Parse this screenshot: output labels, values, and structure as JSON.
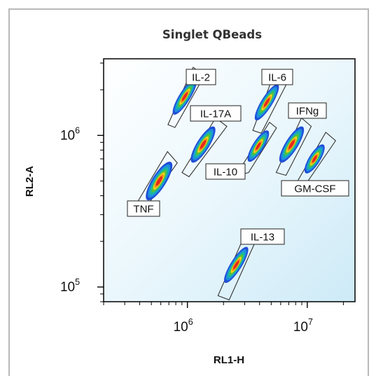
{
  "chart_data": {
    "type": "scatter",
    "title": "Singlet QBeads",
    "xlabel": "RL1-H",
    "ylabel": "RL2-A",
    "xscale": "log",
    "yscale": "log",
    "xlim": [
      200000,
      25000000
    ],
    "ylim": [
      80000,
      3200000
    ],
    "x_ticks": [
      {
        "base": "10",
        "exp": "6",
        "value": 1000000
      },
      {
        "base": "10",
        "exp": "7",
        "value": 10000000
      }
    ],
    "y_ticks": [
      {
        "base": "10",
        "exp": "5",
        "value": 100000
      },
      {
        "base": "10",
        "exp": "6",
        "value": 1000000
      }
    ],
    "grid": false,
    "series": [
      {
        "name": "IL-2",
        "x": 950000,
        "y": 1800000
      },
      {
        "name": "IL-6",
        "x": 4600000,
        "y": 1650000
      },
      {
        "name": "IL-17A",
        "x": 1350000,
        "y": 870000
      },
      {
        "name": "IFNg",
        "x": 7400000,
        "y": 870000
      },
      {
        "name": "IL-10",
        "x": 3900000,
        "y": 850000
      },
      {
        "name": "GM-CSF",
        "x": 11500000,
        "y": 700000
      },
      {
        "name": "TNF",
        "x": 580000,
        "y": 500000
      },
      {
        "name": "IL-13",
        "x": 2550000,
        "y": 140000
      }
    ]
  },
  "colors": {
    "plot_background_light": "#dff2fb",
    "plot_background_dark": "#ffffff",
    "density_high": "#e8281c",
    "density_mid": "#f3d21c",
    "density_low": "#1f4fd6"
  }
}
